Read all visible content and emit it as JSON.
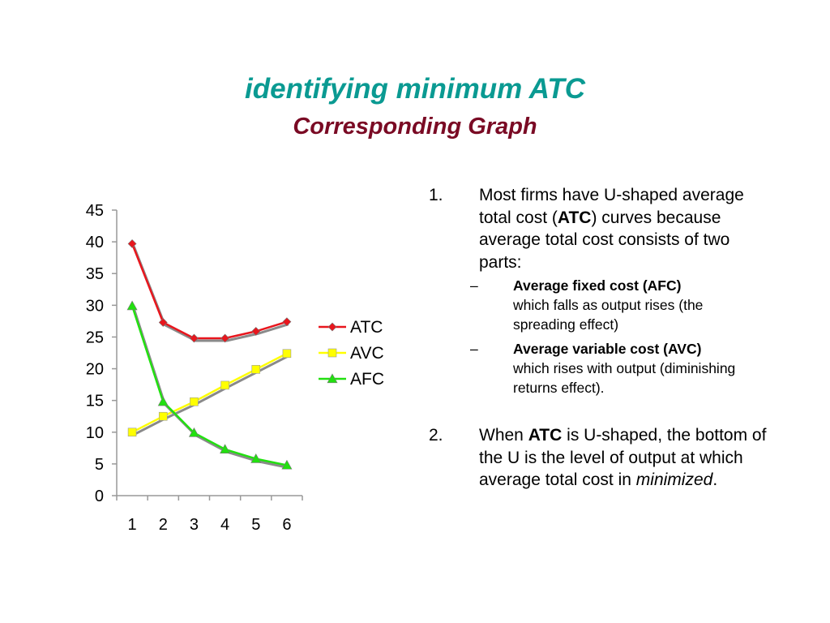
{
  "title": "identifying minimum ATC",
  "subtitle": "Corresponding Graph",
  "colors": {
    "title": "#0a9a92",
    "subtitle": "#7a0a24"
  },
  "chart_data": {
    "type": "line",
    "categories": [
      "1",
      "2",
      "3",
      "4",
      "5",
      "6"
    ],
    "ylim": [
      0,
      45
    ],
    "yticks": [
      "0",
      "5",
      "10",
      "15",
      "20",
      "25",
      "30",
      "35",
      "40",
      "45"
    ],
    "grid": false,
    "legend_position": "right",
    "series": [
      {
        "name": "ATC",
        "values": [
          39.7,
          27.3,
          24.8,
          24.8,
          25.9,
          27.4
        ],
        "color": "#e8161d",
        "marker": "diamond"
      },
      {
        "name": "AVC",
        "values": [
          10,
          12.5,
          14.8,
          17.4,
          19.9,
          22.4
        ],
        "color": "#ffff00",
        "marker": "square"
      },
      {
        "name": "AFC",
        "values": [
          29.9,
          14.8,
          9.9,
          7.3,
          5.8,
          4.8
        ],
        "color": "#22e010",
        "marker": "triangle"
      }
    ]
  },
  "notes": {
    "p1": {
      "number": "1.",
      "t1": "Most firms have U-shaped average total cost (",
      "bold": "ATC",
      "t2": ") curves because average total cost consists of two parts:"
    },
    "sub1": {
      "dash": "–",
      "bold": "Average fixed cost (AFC)",
      "text": "which falls as output rises (the spreading effect)"
    },
    "sub2": {
      "dash": "–",
      "bold": "Average variable cost (AVC)",
      "text": "which rises with output (diminishing returns effect)."
    },
    "p2": {
      "number": "2.",
      "t1": "When ",
      "bold": "ATC",
      "t2": " is U-shaped, the bottom of the U is the level of output at which average total cost in ",
      "italic": "minimized",
      "t3": "."
    }
  }
}
